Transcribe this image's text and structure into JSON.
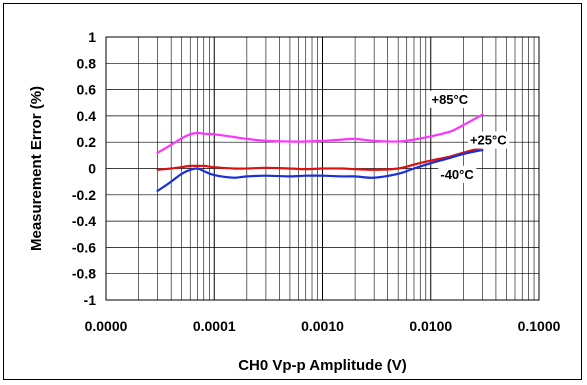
{
  "chart_data": {
    "type": "line",
    "xlabel": "CH0 Vp-p Amplitude (V)",
    "ylabel": "Measurement Error (%)",
    "x_scale": "log",
    "xlim": [
      1e-05,
      0.1
    ],
    "ylim": [
      -1,
      1
    ],
    "x_tick_values": [
      1e-05,
      0.0001,
      0.001,
      0.01,
      0.1
    ],
    "x_tick_labels": [
      "0.0000",
      "0.0001",
      "0.0010",
      "0.0100",
      "0.1000"
    ],
    "y_tick_values": [
      -1,
      -0.8,
      -0.6,
      -0.4,
      -0.2,
      0,
      0.2,
      0.4,
      0.6,
      0.8,
      1
    ],
    "y_tick_labels": [
      "-1",
      "-0.8",
      "-0.6",
      "-0.4",
      "-0.2",
      "0",
      "0.2",
      "0.4",
      "0.6",
      "0.8",
      "1"
    ],
    "grid": true,
    "series": [
      {
        "name": "+85°C",
        "color": "#ff33ff",
        "x": [
          3e-05,
          4e-05,
          5e-05,
          6e-05,
          7e-05,
          8e-05,
          0.0001,
          0.00015,
          0.0002,
          0.0003,
          0.0005,
          0.0007,
          0.001,
          0.0015,
          0.002,
          0.003,
          0.005,
          0.007,
          0.01,
          0.015,
          0.02,
          0.03
        ],
        "y": [
          0.12,
          0.18,
          0.23,
          0.26,
          0.27,
          0.265,
          0.26,
          0.24,
          0.225,
          0.21,
          0.205,
          0.205,
          0.21,
          0.22,
          0.225,
          0.21,
          0.205,
          0.22,
          0.245,
          0.28,
          0.33,
          0.41
        ]
      },
      {
        "name": "+25°C",
        "color": "#dd1111",
        "x": [
          3e-05,
          4e-05,
          5e-05,
          6e-05,
          7e-05,
          8e-05,
          0.0001,
          0.00015,
          0.0002,
          0.0003,
          0.0005,
          0.0007,
          0.001,
          0.0015,
          0.002,
          0.003,
          0.005,
          0.007,
          0.01,
          0.015,
          0.02,
          0.03
        ],
        "y": [
          -0.01,
          0.0,
          0.01,
          0.02,
          0.02,
          0.02,
          0.01,
          0.0,
          0.0,
          0.005,
          0.0,
          -0.005,
          0.0,
          0.0,
          -0.005,
          -0.01,
          0.0,
          0.03,
          0.06,
          0.09,
          0.12,
          0.16
        ]
      },
      {
        "name": "-40°C",
        "color": "#1a2fd6",
        "x": [
          3e-05,
          4e-05,
          5e-05,
          6e-05,
          7e-05,
          8e-05,
          0.0001,
          0.00015,
          0.0002,
          0.0003,
          0.0005,
          0.0007,
          0.001,
          0.0015,
          0.002,
          0.003,
          0.005,
          0.007,
          0.01,
          0.015,
          0.02,
          0.03
        ],
        "y": [
          -0.17,
          -0.1,
          -0.04,
          -0.01,
          0.0,
          -0.02,
          -0.05,
          -0.07,
          -0.06,
          -0.055,
          -0.06,
          -0.055,
          -0.055,
          -0.06,
          -0.06,
          -0.07,
          -0.04,
          0.0,
          0.04,
          0.08,
          0.11,
          0.14
        ]
      }
    ],
    "annotations": [
      {
        "text": "+85°C",
        "x": 0.015,
        "y": 0.53
      },
      {
        "text": "+25°C",
        "x": 0.034,
        "y": 0.22
      },
      {
        "text": "-40°C",
        "x": 0.0175,
        "y": -0.04
      }
    ]
  }
}
